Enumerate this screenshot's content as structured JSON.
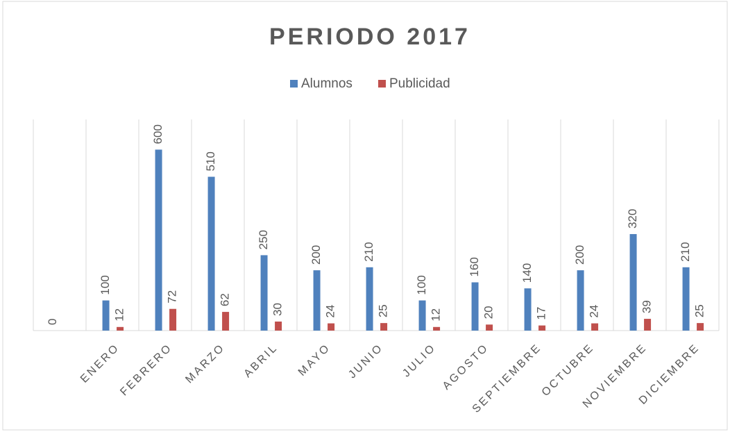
{
  "chart_data": {
    "type": "bar",
    "title": "PERIODO 2017",
    "categories": [
      null,
      "ENERO",
      "FEBRERO",
      "MARZO",
      "ABRIL",
      "MAYO",
      "JUNIO",
      "JULIO",
      "AGOSTO",
      "SEPTIEMBRE",
      "OCTUBRE",
      "NOVIEMBRE",
      "DICIEMBRE"
    ],
    "series": [
      {
        "name": "Alumnos",
        "color": "#4f81bd",
        "values": [
          0,
          100,
          600,
          510,
          250,
          200,
          210,
          100,
          160,
          140,
          200,
          320,
          210
        ]
      },
      {
        "name": "Publicidad",
        "color": "#c0504d",
        "values": [
          null,
          12,
          72,
          62,
          30,
          24,
          25,
          12,
          20,
          17,
          24,
          39,
          25
        ]
      }
    ],
    "ylim": [
      0,
      700
    ],
    "grid": true,
    "legend": "top"
  }
}
